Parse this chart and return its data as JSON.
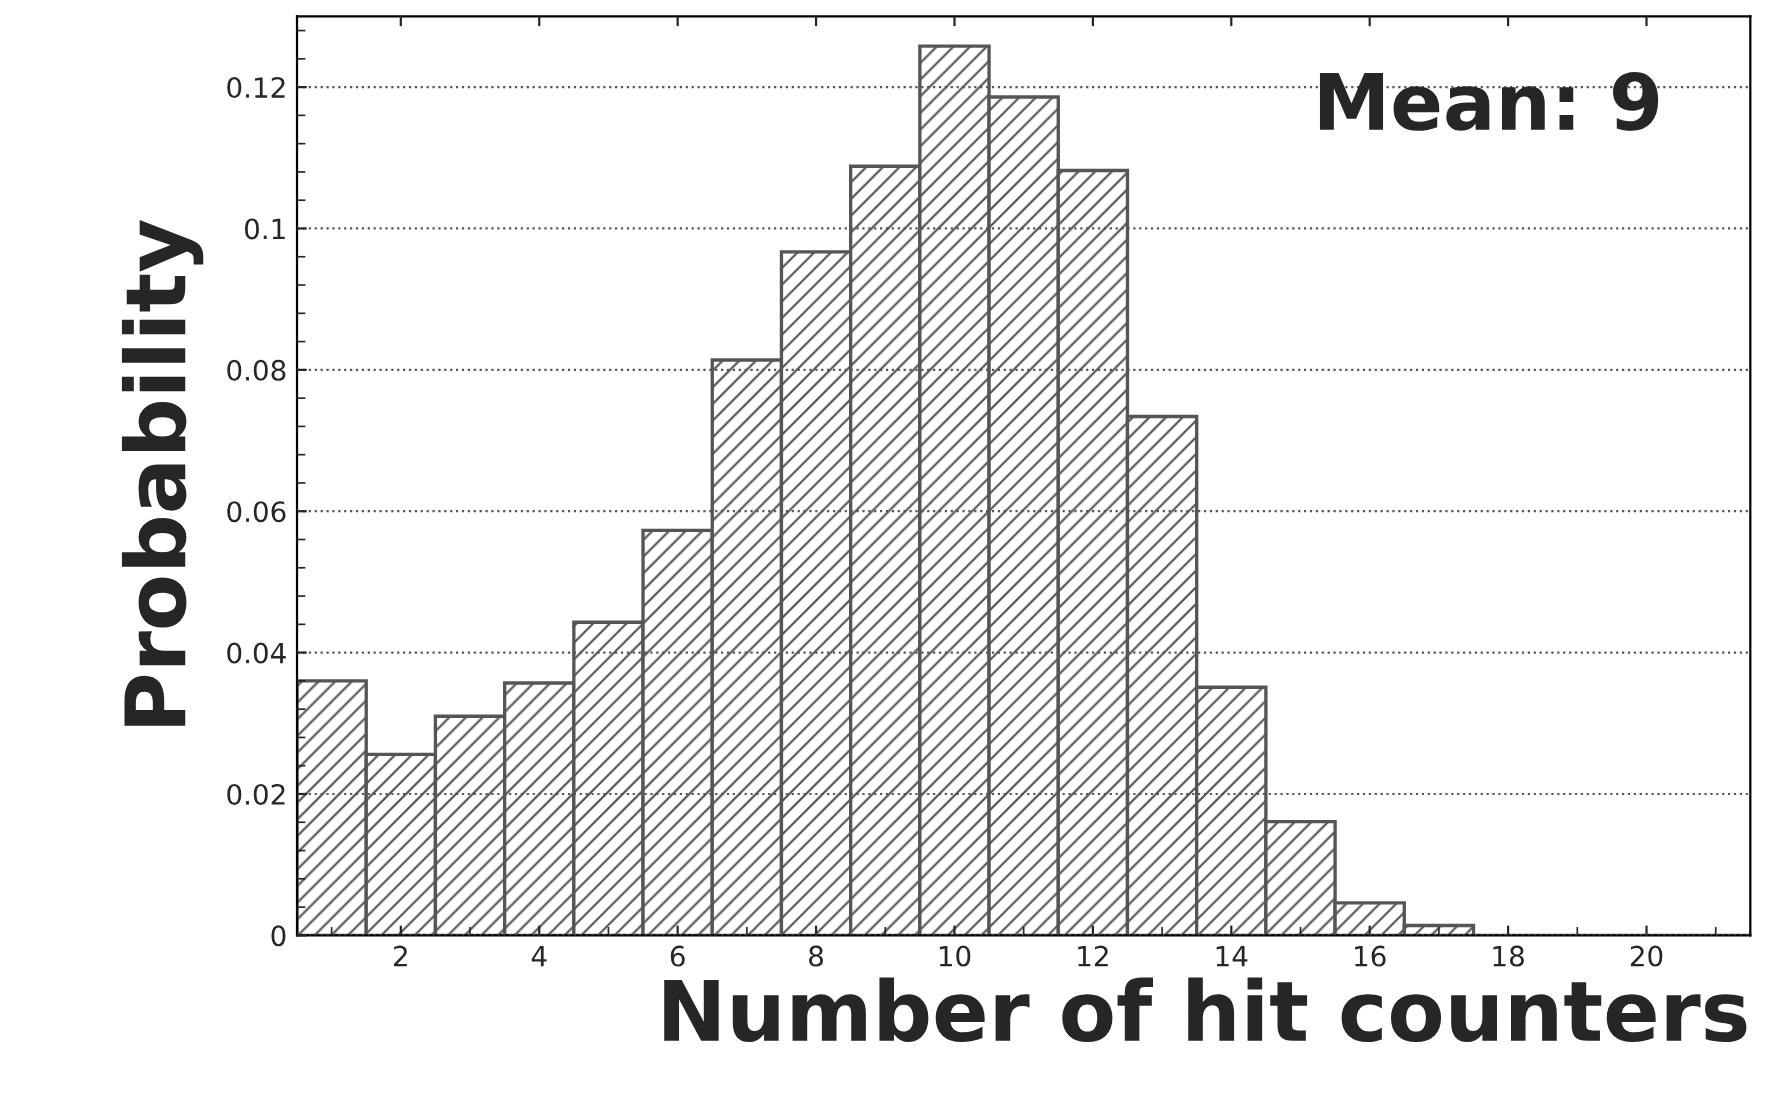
{
  "chart_data": {
    "type": "histogram",
    "xlabel": "Number of hit counters",
    "ylabel": "Probability",
    "annotations": [
      "Mean: 9"
    ],
    "bins": [
      0.5,
      1.5,
      2.5,
      3.5,
      4.5,
      5.5,
      6.5,
      7.5,
      8.5,
      9.5,
      10.5,
      11.5,
      12.5,
      13.5,
      14.5,
      15.5,
      16.5,
      17.5,
      18.5,
      19.5,
      20.5,
      21.5
    ],
    "values": [
      0.036,
      0.0256,
      0.031,
      0.0357,
      0.0443,
      0.0573,
      0.0814,
      0.0967,
      0.1088,
      0.1258,
      0.1186,
      0.1082,
      0.0734,
      0.0351,
      0.0161,
      0.0046,
      0.0014,
      0,
      0,
      0,
      0
    ],
    "color": "#555555",
    "xlim": [
      0.5,
      21.5
    ],
    "xticks": [
      2,
      4,
      6,
      8,
      10,
      12,
      14,
      16,
      18,
      20
    ],
    "ylim": [
      0,
      0.13
    ],
    "yticks": [
      0,
      0.02,
      0.04,
      0.06,
      0.08,
      0.1,
      0.12
    ],
    "grid": "y"
  }
}
